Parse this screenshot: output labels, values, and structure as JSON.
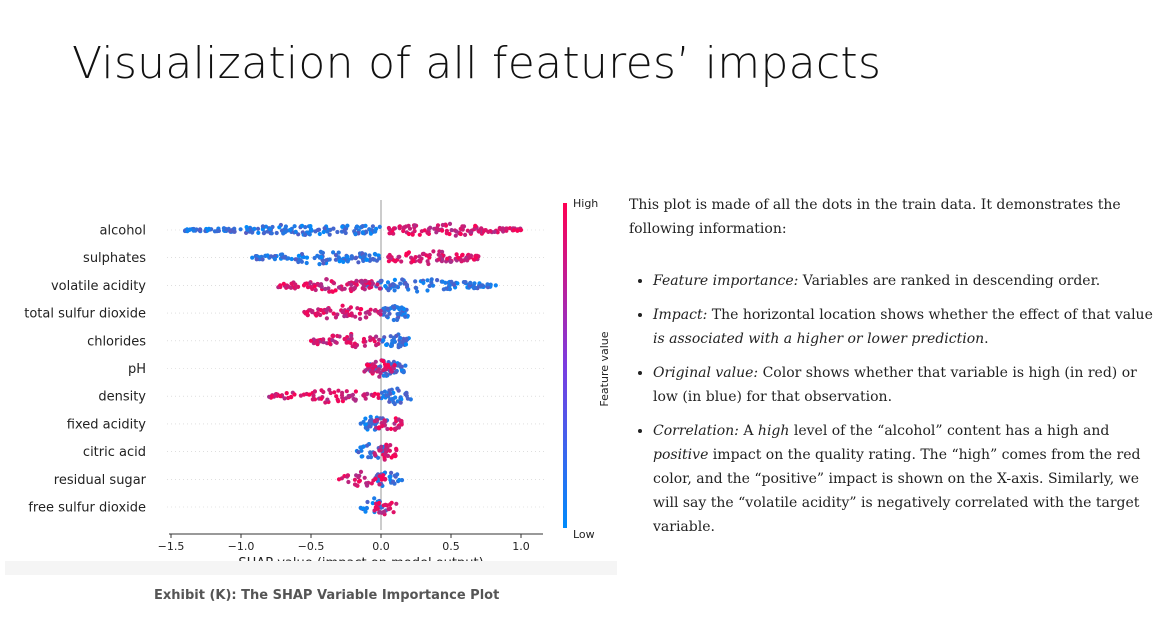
{
  "slide": {
    "title": "Visualization of all features’ impacts"
  },
  "caption": "Exhibit (K): The SHAP Variable Importance Plot",
  "chart_data": {
    "type": "scatter",
    "subtype": "shap-beeswarm",
    "xlabel": "SHAP value (impact on model output)",
    "xlim": [
      -1.5,
      1.1
    ],
    "xticks": [
      -1.5,
      -1.0,
      -0.5,
      0.0,
      0.5,
      1.0
    ],
    "xtick_labels": [
      "−1.5",
      "−1.0",
      "−0.5",
      "0.0",
      "0.5",
      "1.0"
    ],
    "colorbar": {
      "title": "Feature value",
      "high_label": "High",
      "low_label": "Low",
      "low_color": "#008bfb",
      "high_color": "#ff0052"
    },
    "features": [
      {
        "name": "alcohol",
        "low_range": [
          -1.4,
          0.0
        ],
        "high_range": [
          0.05,
          1.0
        ],
        "outliers": [
          -1.37,
          -0.65,
          -0.5,
          0.95,
          1.0
        ]
      },
      {
        "name": "sulphates",
        "low_range": [
          -0.9,
          0.0
        ],
        "high_range": [
          0.05,
          0.7
        ],
        "outliers": [
          -0.92,
          0.68,
          0.55
        ]
      },
      {
        "name": "volatile acidity",
        "low_range": [
          -0.1,
          0.8
        ],
        "high_range": [
          -0.75,
          0.0
        ],
        "outliers": [
          0.82,
          -0.72,
          -0.55
        ]
      },
      {
        "name": "total sulfur dioxide",
        "low_range": [
          0.0,
          0.2
        ],
        "high_range": [
          -0.55,
          0.0
        ],
        "outliers": [
          -0.53
        ]
      },
      {
        "name": "chlorides",
        "low_range": [
          0.0,
          0.2
        ],
        "high_range": [
          -0.5,
          0.0
        ],
        "outliers": [
          -0.5
        ]
      },
      {
        "name": "pH",
        "low_range": [
          -0.1,
          0.18
        ],
        "high_range": [
          -0.12,
          0.1
        ],
        "outliers": []
      },
      {
        "name": "density",
        "low_range": [
          0.0,
          0.22
        ],
        "high_range": [
          -0.8,
          0.0
        ],
        "outliers": [
          -0.78,
          -0.32
        ]
      },
      {
        "name": "fixed acidity",
        "low_range": [
          -0.15,
          0.05
        ],
        "high_range": [
          -0.05,
          0.15
        ],
        "outliers": []
      },
      {
        "name": "citric acid",
        "low_range": [
          -0.18,
          0.05
        ],
        "high_range": [
          -0.05,
          0.12
        ],
        "outliers": []
      },
      {
        "name": "residual sugar",
        "low_range": [
          -0.05,
          0.15
        ],
        "high_range": [
          -0.3,
          0.05
        ],
        "outliers": [
          -0.3
        ]
      },
      {
        "name": "free sulfur dioxide",
        "low_range": [
          -0.15,
          0.05
        ],
        "high_range": [
          -0.05,
          0.12
        ],
        "outliers": []
      }
    ]
  },
  "explanation": {
    "intro": "This plot is made of all the dots in the train data. It demonstrates the following information:",
    "items": [
      {
        "term": "Feature importance:",
        "text": " Variables are ranked in descending order."
      },
      {
        "term": "Impact:",
        "text": " The horizontal location shows whether the effect of that value ",
        "emph": "is associated with a higher or lower prediction",
        "end": "."
      },
      {
        "term": "Original value:",
        "text": " Color shows whether that variable is high (in red) or low (in blue) for that observation."
      },
      {
        "term": "Correlation:",
        "t1": " A ",
        "e1": "high",
        "t2": " level of the “alcohol” content has a high and ",
        "e2": "positive",
        "t3": " impact on the quality rating. The “high” comes from the red color, and the “positive” impact is shown on the X-axis. Similarly, we will say the “volatile acidity” is negatively correlated with the target variable."
      }
    ]
  }
}
